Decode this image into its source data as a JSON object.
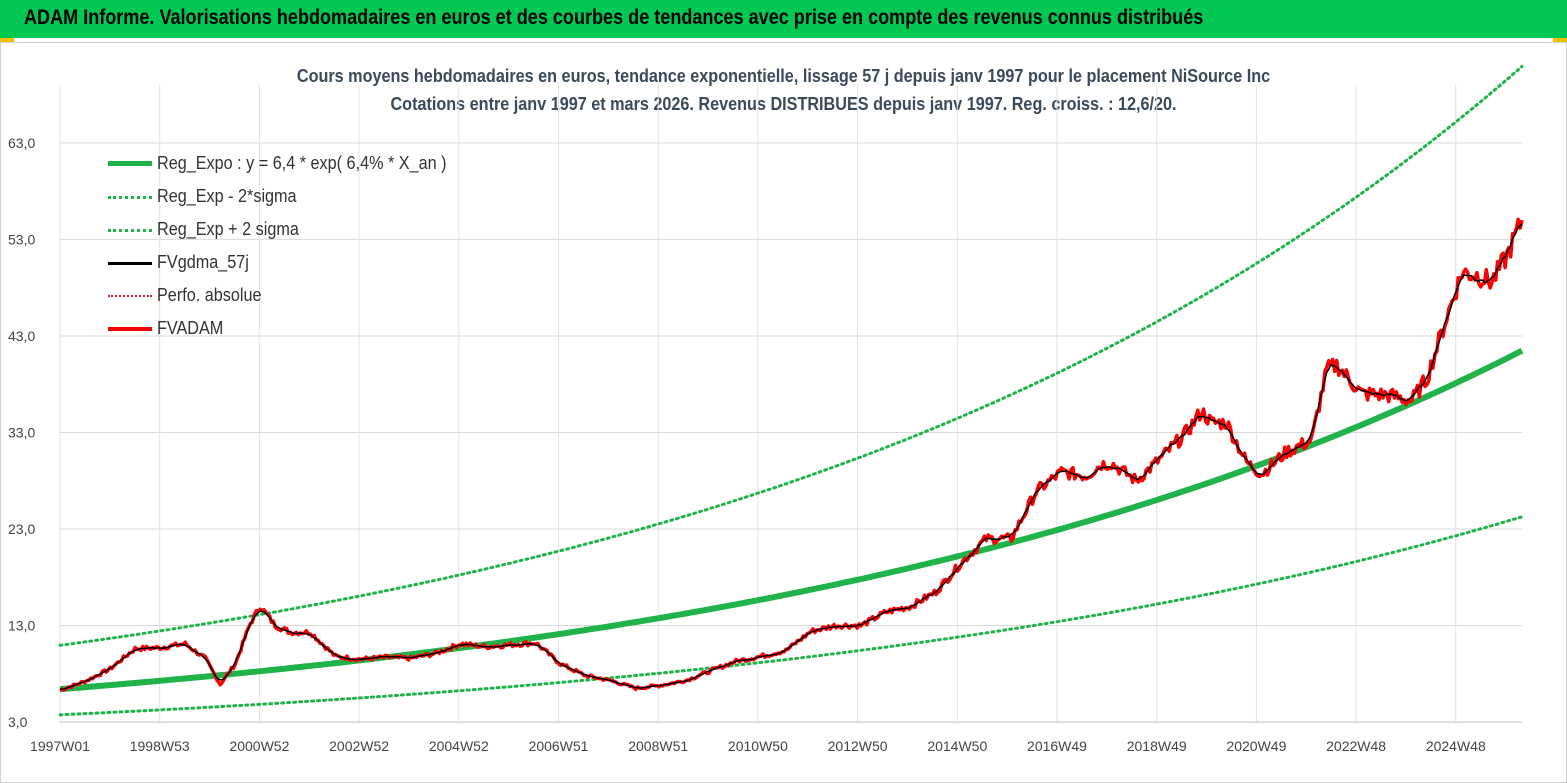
{
  "banner": {
    "title": "ADAM Informe. Valorisations hebdomadaires en euros et des courbes de tendances avec prise en compte des revenus connus distribués",
    "color": "#00c853"
  },
  "chart_data": {
    "type": "line",
    "title": "Cours moyens hebdomadaires en euros, tendance exponentielle, lissage 57 j depuis janv 1997 pour le placement NiSource Inc",
    "subtitle": "Cotations entre janv 1997 et mars 2026. Revenus DISTRIBUES depuis janv 1997. Reg. croiss. : 12,6/20.",
    "xlabel": "",
    "ylabel": "",
    "ylim": [
      3.0,
      69.0
    ],
    "y_ticks": [
      "3,0",
      "13,0",
      "23,0",
      "33,0",
      "43,0",
      "53,0",
      "63,0"
    ],
    "y_tick_values": [
      3,
      13,
      23,
      33,
      43,
      53,
      63
    ],
    "x_ticks": [
      "1997W01",
      "1998W53",
      "2000W52",
      "2002W52",
      "2004W52",
      "2006W51",
      "2008W51",
      "2010W50",
      "2012W50",
      "2014W50",
      "2016W49",
      "2018W49",
      "2020W49",
      "2022W48",
      "2024W48"
    ],
    "x_range": [
      1997.0,
      2026.2
    ],
    "grid": true,
    "legend_position": "top-left",
    "series": [
      {
        "name": "Reg_Expo : y = 6,4 * exp( 6,4% *  X_an )",
        "color": "#1fb34a",
        "style": "thick",
        "formula": {
          "a": 6.4,
          "k": 0.064,
          "factor": 1
        }
      },
      {
        "name": "Reg_Exp - 2*sigma",
        "color": "#1fb34a",
        "style": "dotted",
        "formula": {
          "a": 6.4,
          "k": 0.064,
          "factor": 0.585
        }
      },
      {
        "name": "Reg_Exp + 2 sigma",
        "color": "#1fb34a",
        "style": "dotted",
        "formula": {
          "a": 6.4,
          "k": 0.064,
          "factor": 1.71
        }
      },
      {
        "name": "FVgdma_57j",
        "color": "#000000",
        "style": "solid",
        "smooth_of": "FVADAM"
      },
      {
        "name": "Perfo. absolue",
        "color": "#e02020",
        "style": "dotted"
      },
      {
        "name": "FVADAM",
        "color": "#ff0000",
        "style": "thick",
        "x": [
          1997.0,
          1997.5,
          1998.0,
          1998.5,
          1999.0,
          1999.5,
          1999.9,
          2000.2,
          2000.5,
          2000.8,
          2001.0,
          2001.3,
          2001.6,
          2002.0,
          2002.5,
          2003.0,
          2003.5,
          2004.0,
          2004.5,
          2005.0,
          2005.5,
          2006.0,
          2006.5,
          2007.0,
          2007.5,
          2008.0,
          2008.5,
          2009.0,
          2009.5,
          2010.0,
          2010.5,
          2011.0,
          2011.5,
          2012.0,
          2012.5,
          2013.0,
          2013.5,
          2014.0,
          2014.5,
          2015.0,
          2015.5,
          2016.0,
          2016.5,
          2017.0,
          2017.5,
          2017.8,
          2018.0,
          2018.5,
          2019.0,
          2019.5,
          2019.8,
          2020.0,
          2020.3,
          2020.7,
          2021.0,
          2021.5,
          2022.0,
          2022.3,
          2022.5,
          2023.0,
          2023.5,
          2024.0,
          2024.3,
          2024.7,
          2025.0,
          2025.3,
          2025.6,
          2025.9,
          2026.2
        ],
        "values": [
          6.3,
          7.2,
          8.5,
          10.6,
          10.7,
          11.1,
          9.6,
          6.9,
          9.0,
          13.2,
          15.0,
          13.0,
          12.3,
          12.3,
          9.8,
          9.5,
          9.7,
          9.6,
          10.1,
          11.1,
          10.8,
          11.0,
          11.2,
          9.0,
          7.8,
          7.3,
          6.5,
          6.8,
          7.3,
          8.3,
          9.3,
          9.8,
          10.4,
          12.4,
          13.0,
          13.0,
          14.4,
          15.0,
          16.5,
          19.5,
          22.0,
          22.0,
          26.9,
          28.9,
          28.5,
          29.7,
          29.8,
          28.0,
          30.4,
          33.0,
          35.2,
          34.0,
          34.0,
          29.9,
          28.7,
          31.0,
          32.2,
          39.5,
          40.0,
          37.0,
          36.9,
          36.3,
          38.6,
          45.0,
          49.6,
          49.3,
          48.6,
          51.3,
          55.0
        ]
      }
    ]
  }
}
